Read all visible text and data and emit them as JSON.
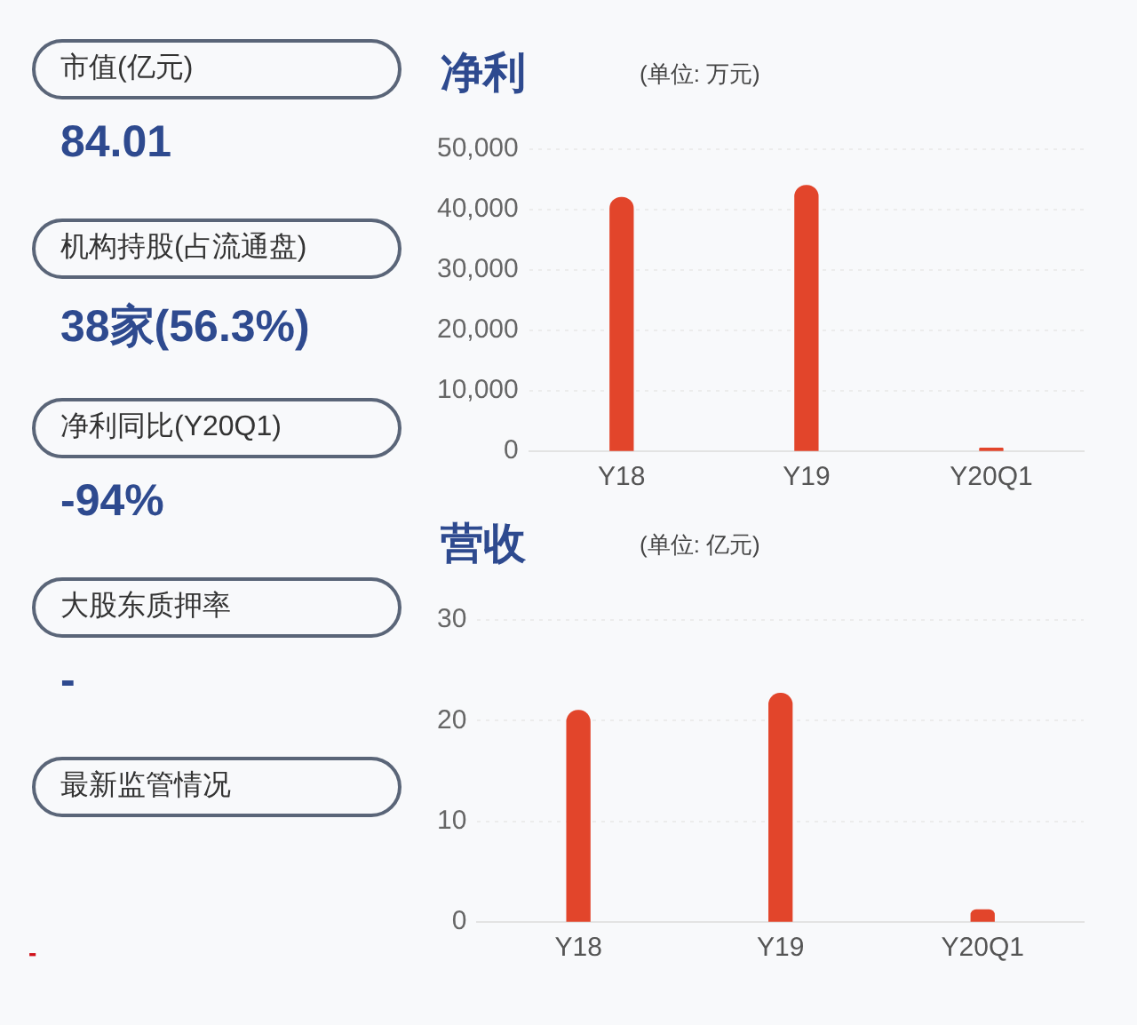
{
  "chart_data": [
    {
      "type": "other",
      "annotations": [
        "市值(亿元)",
        "84.01",
        "机构持股(占流通盘)",
        "38家(56.3%)",
        "净利同比(Y20Q1)",
        "-94%",
        "大股东质押率",
        "-",
        "最新监管情况",
        "-"
      ]
    },
    {
      "type": "bar",
      "title": "净利",
      "subtitle": "(单位: 万元)",
      "categories": [
        "Y18",
        "Y19",
        "Y20Q1"
      ],
      "values": [
        42000,
        44000,
        500
      ],
      "color": "#e2452b",
      "ylim": [
        0,
        50000
      ],
      "yticks": [
        0,
        {
          "value": 10000,
          "label": "10,000"
        },
        {
          "value": 20000,
          "label": "20,000"
        },
        {
          "value": 30000,
          "label": "30,000"
        },
        {
          "value": 40000,
          "label": "40,000"
        },
        {
          "value": 50000,
          "label": "50,000"
        }
      ],
      "grid": "y"
    },
    {
      "type": "bar",
      "title": "营收",
      "subtitle": "(单位: 亿元)",
      "categories": [
        "Y18",
        "Y19",
        "Y20Q1"
      ],
      "values": [
        21,
        22.7,
        1.2
      ],
      "color": "#e2452b",
      "ylim": [
        0,
        30
      ],
      "yticks": [
        0,
        10,
        20,
        30
      ],
      "grid": "y"
    }
  ]
}
